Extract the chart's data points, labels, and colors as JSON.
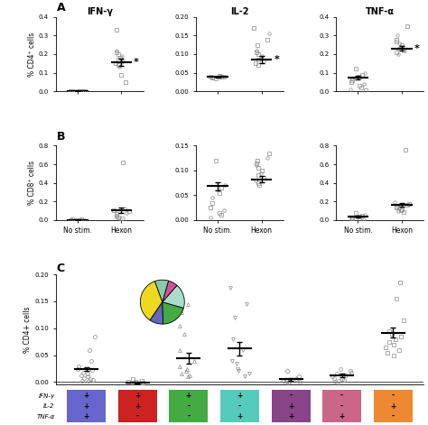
{
  "panel_A": {
    "title": "IFN-γ",
    "ylabel": "% CD4⁺ cells",
    "ylim": [
      0,
      0.4
    ],
    "yticks": [
      0.0,
      0.1,
      0.2,
      0.3,
      0.4
    ],
    "no_stim_dots": [
      0.002,
      0.001,
      0.003,
      0.001,
      0.002,
      0.003,
      0.001,
      0.002,
      0.001,
      0.003,
      0.002,
      0.001,
      0.002
    ],
    "hexon_dots": [
      0.33,
      0.22,
      0.21,
      0.2,
      0.19,
      0.18,
      0.17,
      0.16,
      0.15,
      0.14,
      0.13,
      0.09,
      0.05
    ],
    "no_stim_mean": 0.002,
    "no_stim_sem": 0.001,
    "hexon_mean": 0.155,
    "hexon_sem": 0.02,
    "significant": true
  },
  "panel_A2": {
    "title": "IL-2",
    "ylim": [
      0,
      0.2
    ],
    "yticks": [
      0.0,
      0.05,
      0.1,
      0.15,
      0.2
    ],
    "no_stim_dots": [
      0.035,
      0.038,
      0.04,
      0.042,
      0.037,
      0.036,
      0.038,
      0.039,
      0.041,
      0.04
    ],
    "hexon_dots": [
      0.17,
      0.155,
      0.14,
      0.125,
      0.11,
      0.105,
      0.1,
      0.095,
      0.09,
      0.085,
      0.08,
      0.075,
      0.07
    ],
    "no_stim_mean": 0.038,
    "no_stim_sem": 0.002,
    "hexon_mean": 0.085,
    "hexon_sem": 0.01,
    "significant": true
  },
  "panel_A3": {
    "title": "TNF-α",
    "ylim": [
      0,
      0.4
    ],
    "yticks": [
      0.0,
      0.1,
      0.2,
      0.3,
      0.4
    ],
    "no_stim_dots": [
      0.12,
      0.1,
      0.09,
      0.08,
      0.07,
      0.06,
      0.05,
      0.04,
      0.03,
      0.02,
      0.01,
      0.005
    ],
    "hexon_dots": [
      0.35,
      0.3,
      0.28,
      0.27,
      0.26,
      0.25,
      0.24,
      0.23,
      0.22,
      0.21,
      0.2
    ],
    "no_stim_mean": 0.075,
    "no_stim_sem": 0.01,
    "hexon_mean": 0.23,
    "hexon_sem": 0.012,
    "significant": true
  },
  "panel_B": {
    "ylabel": "% CD8⁺ cells",
    "ylim": [
      0,
      0.8
    ],
    "yticks": [
      0.0,
      0.2,
      0.4,
      0.6,
      0.8
    ],
    "no_stim_dots": [
      0.002,
      0.001,
      0.003,
      0.001,
      0.002,
      0.003,
      0.001,
      0.002
    ],
    "hexon_dots": [
      0.62,
      0.12,
      0.105,
      0.095,
      0.08,
      0.07,
      0.05,
      0.04,
      0.03,
      0.02,
      0.01
    ],
    "no_stim_mean": 0.002,
    "no_stim_sem": 0.001,
    "hexon_mean": 0.105,
    "hexon_sem": 0.025,
    "significant": false
  },
  "panel_B2": {
    "ylim": [
      0,
      0.15
    ],
    "yticks": [
      0.0,
      0.05,
      0.1,
      0.15
    ],
    "no_stim_dots": [
      0.12,
      0.07,
      0.065,
      0.055,
      0.045,
      0.035,
      0.025,
      0.02,
      0.015,
      0.01,
      0.005
    ],
    "hexon_dots": [
      0.135,
      0.125,
      0.12,
      0.115,
      0.11,
      0.105,
      0.1,
      0.095,
      0.09,
      0.085,
      0.08,
      0.075,
      0.07
    ],
    "no_stim_mean": 0.068,
    "no_stim_sem": 0.008,
    "hexon_mean": 0.082,
    "hexon_sem": 0.006,
    "significant": false
  },
  "panel_B3": {
    "ylim": [
      0,
      0.8
    ],
    "yticks": [
      0.0,
      0.2,
      0.4,
      0.6,
      0.8
    ],
    "no_stim_dots": [
      0.075,
      0.06,
      0.05,
      0.04,
      0.03,
      0.02,
      0.01,
      0.005,
      0.003
    ],
    "hexon_dots": [
      0.76,
      0.19,
      0.175,
      0.165,
      0.155,
      0.14,
      0.13,
      0.12,
      0.11,
      0.1,
      0.09,
      0.085
    ],
    "no_stim_mean": 0.04,
    "no_stim_sem": 0.01,
    "hexon_mean": 0.165,
    "hexon_sem": 0.018,
    "significant": false
  },
  "panel_C": {
    "ylabel": "% CD4+ cells",
    "ylim": [
      -0.005,
      0.2
    ],
    "yticks": [
      0.0,
      0.05,
      0.1,
      0.15,
      0.2
    ],
    "categories": [
      {
        "label": "+/+/+",
        "color": "#6666CC",
        "marker": "o",
        "mean": 0.024,
        "sem": 0.004,
        "dots": [
          0.085,
          0.06,
          0.04,
          0.03,
          0.025,
          0.022,
          0.018,
          0.015,
          0.012,
          0.01,
          0.008,
          0.006,
          0.004,
          0.003,
          0.002
        ]
      },
      {
        "label": "+/+/-",
        "color": "#CC2222",
        "marker": "s",
        "mean": -0.001,
        "sem": 0.001,
        "dots": [
          0.005,
          0.002,
          0.001,
          0.0,
          -0.001
        ]
      },
      {
        "label": "+/-/-",
        "color": "#44AA44",
        "marker": "^",
        "mean": 0.044,
        "sem": 0.01,
        "dots": [
          0.145,
          0.13,
          0.105,
          0.09,
          0.06,
          0.04,
          0.03,
          0.025,
          0.02,
          0.015,
          0.012,
          0.01
        ]
      },
      {
        "label": "+/-/+",
        "color": "#55CCBB",
        "marker": "v",
        "mean": 0.062,
        "sem": 0.012,
        "dots": [
          0.175,
          0.145,
          0.12,
          0.08,
          0.06,
          0.04,
          0.035,
          0.025,
          0.02,
          0.015,
          0.01
        ]
      },
      {
        "label": "-/+/+",
        "color": "#884488",
        "marker": "D",
        "mean": 0.005,
        "sem": 0.002,
        "dots": [
          0.02,
          0.01,
          0.006,
          0.004,
          0.003,
          0.002,
          0.001,
          0.0,
          -0.001
        ]
      },
      {
        "label": "-/-/+",
        "color": "#CC6688",
        "marker": "o",
        "mean": 0.012,
        "sem": 0.003,
        "dots": [
          0.025,
          0.02,
          0.018,
          0.015,
          0.012,
          0.01,
          0.008,
          0.006,
          0.004,
          0.002,
          0.0,
          -0.002
        ]
      },
      {
        "label": "-/+/-",
        "color": "#EE8833",
        "marker": "s",
        "mean": 0.092,
        "sem": 0.01,
        "dots": [
          0.185,
          0.155,
          0.115,
          0.095,
          0.09,
          0.085,
          0.08,
          0.075,
          0.07,
          0.065,
          0.06,
          0.055,
          0.05
        ]
      }
    ],
    "pie_colors": [
      "#EED820",
      "#6666BB",
      "#44AA44",
      "#AADDCC",
      "#CC5599",
      "#88CCAA"
    ],
    "pie_sizes": [
      35,
      10,
      20,
      18,
      7,
      10
    ],
    "box_colors": [
      "#6666CC",
      "#CC2222",
      "#44AA44",
      "#55CCBB",
      "#884488",
      "#CC6688",
      "#EE8833"
    ],
    "box_signs": [
      [
        "+",
        "+",
        "+"
      ],
      [
        "+",
        "+",
        "-"
      ],
      [
        "+",
        "-",
        "-"
      ],
      [
        "+",
        "-",
        "+"
      ],
      [
        "-",
        "+",
        "+"
      ],
      [
        "-",
        "-",
        "+"
      ],
      [
        "-",
        "+",
        "-"
      ]
    ],
    "row_labels": [
      "IFN-γ",
      "IL-2",
      "TNF-α"
    ]
  }
}
